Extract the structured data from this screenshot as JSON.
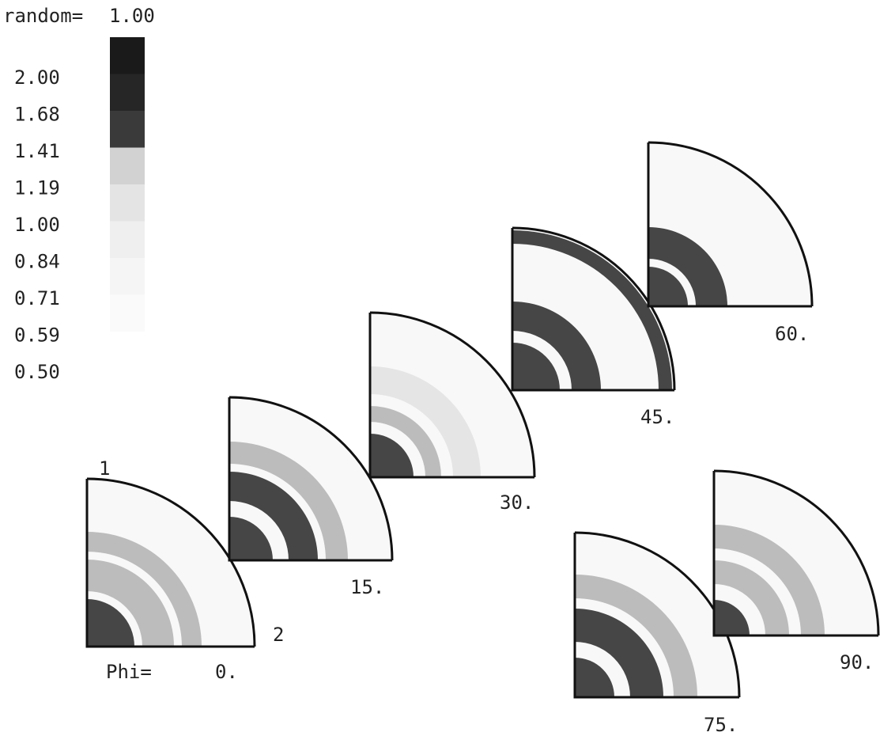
{
  "header": {
    "label": "random=",
    "value": "1.00"
  },
  "legend": {
    "levels": [
      "2.00",
      "1.68",
      "1.41",
      "1.19",
      "1.00",
      "0.84",
      "0.71",
      "0.59",
      "0.50"
    ],
    "shades": [
      "#1a1a1a",
      "#262626",
      "#3a3a3a",
      "#d2d2d2",
      "#e4e4e4",
      "#efefef",
      "#f5f5f5",
      "#fafafa",
      "#ffffff"
    ]
  },
  "axes": {
    "y_label": "1",
    "x_label": "2",
    "phi_label": "Phi="
  },
  "sections": [
    {
      "phi": "0."
    },
    {
      "phi": "15."
    },
    {
      "phi": "30."
    },
    {
      "phi": "45."
    },
    {
      "phi": "60."
    },
    {
      "phi": "75."
    },
    {
      "phi": "90."
    }
  ],
  "colors": {
    "ink": "#111111",
    "high": "#1e1e1e",
    "mid": "#8a8a8a",
    "low": "#d6d6d6"
  }
}
